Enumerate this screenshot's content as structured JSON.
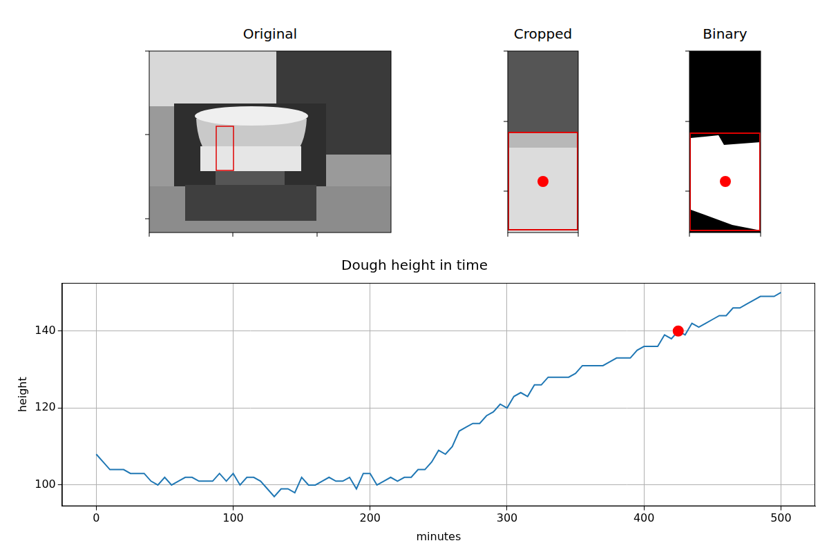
{
  "panels": [
    {
      "title": "Original"
    },
    {
      "title": "Cropped"
    },
    {
      "title": "Binary"
    }
  ],
  "chart_data": {
    "type": "line",
    "title": "Dough height in time",
    "x_label": "minutes",
    "y_label": "height",
    "x": [
      0,
      5,
      10,
      15,
      20,
      25,
      30,
      35,
      40,
      45,
      50,
      55,
      60,
      65,
      70,
      75,
      80,
      85,
      90,
      95,
      100,
      105,
      110,
      115,
      120,
      125,
      130,
      135,
      140,
      145,
      150,
      155,
      160,
      165,
      170,
      175,
      180,
      185,
      190,
      195,
      200,
      205,
      210,
      215,
      220,
      225,
      230,
      235,
      240,
      245,
      250,
      255,
      260,
      265,
      270,
      275,
      280,
      285,
      290,
      295,
      300,
      305,
      310,
      315,
      320,
      325,
      330,
      335,
      340,
      345,
      350,
      355,
      360,
      365,
      370,
      375,
      380,
      385,
      390,
      395,
      400,
      405,
      410,
      415,
      420,
      425,
      430,
      435,
      440,
      445,
      450,
      455,
      460,
      465,
      470,
      475,
      480,
      485,
      490,
      495,
      500
    ],
    "series": [
      {
        "color": "#1f77b4",
        "values": [
          108,
          106,
          104,
          104,
          104,
          103,
          103,
          103,
          101,
          100,
          102,
          100,
          101,
          102,
          102,
          101,
          101,
          101,
          103,
          101,
          103,
          100,
          102,
          102,
          101,
          99,
          97,
          99,
          99,
          98,
          102,
          100,
          100,
          101,
          102,
          101,
          101,
          102,
          99,
          103,
          103,
          100,
          101,
          102,
          101,
          102,
          102,
          104,
          104,
          106,
          109,
          108,
          110,
          114,
          115,
          116,
          116,
          118,
          119,
          121,
          120,
          123,
          124,
          123,
          126,
          126,
          128,
          128,
          128,
          128,
          129,
          131,
          131,
          131,
          131,
          132,
          133,
          133,
          133,
          135,
          136,
          136,
          136,
          139,
          138,
          140,
          139,
          142,
          141,
          142,
          143,
          144,
          144,
          146,
          146,
          147,
          148,
          149,
          149,
          149,
          150
        ]
      },
      {
        "type": "scatter",
        "color": "#ff0000",
        "marker": "circle",
        "x": [
          425
        ],
        "values": [
          140
        ]
      }
    ],
    "xlim": [
      -25,
      525
    ],
    "xticks": [
      0,
      100,
      200,
      300,
      400,
      500
    ],
    "ylim": [
      94.5,
      152.5
    ],
    "yticks": [
      100,
      120,
      140
    ],
    "grid": true
  }
}
